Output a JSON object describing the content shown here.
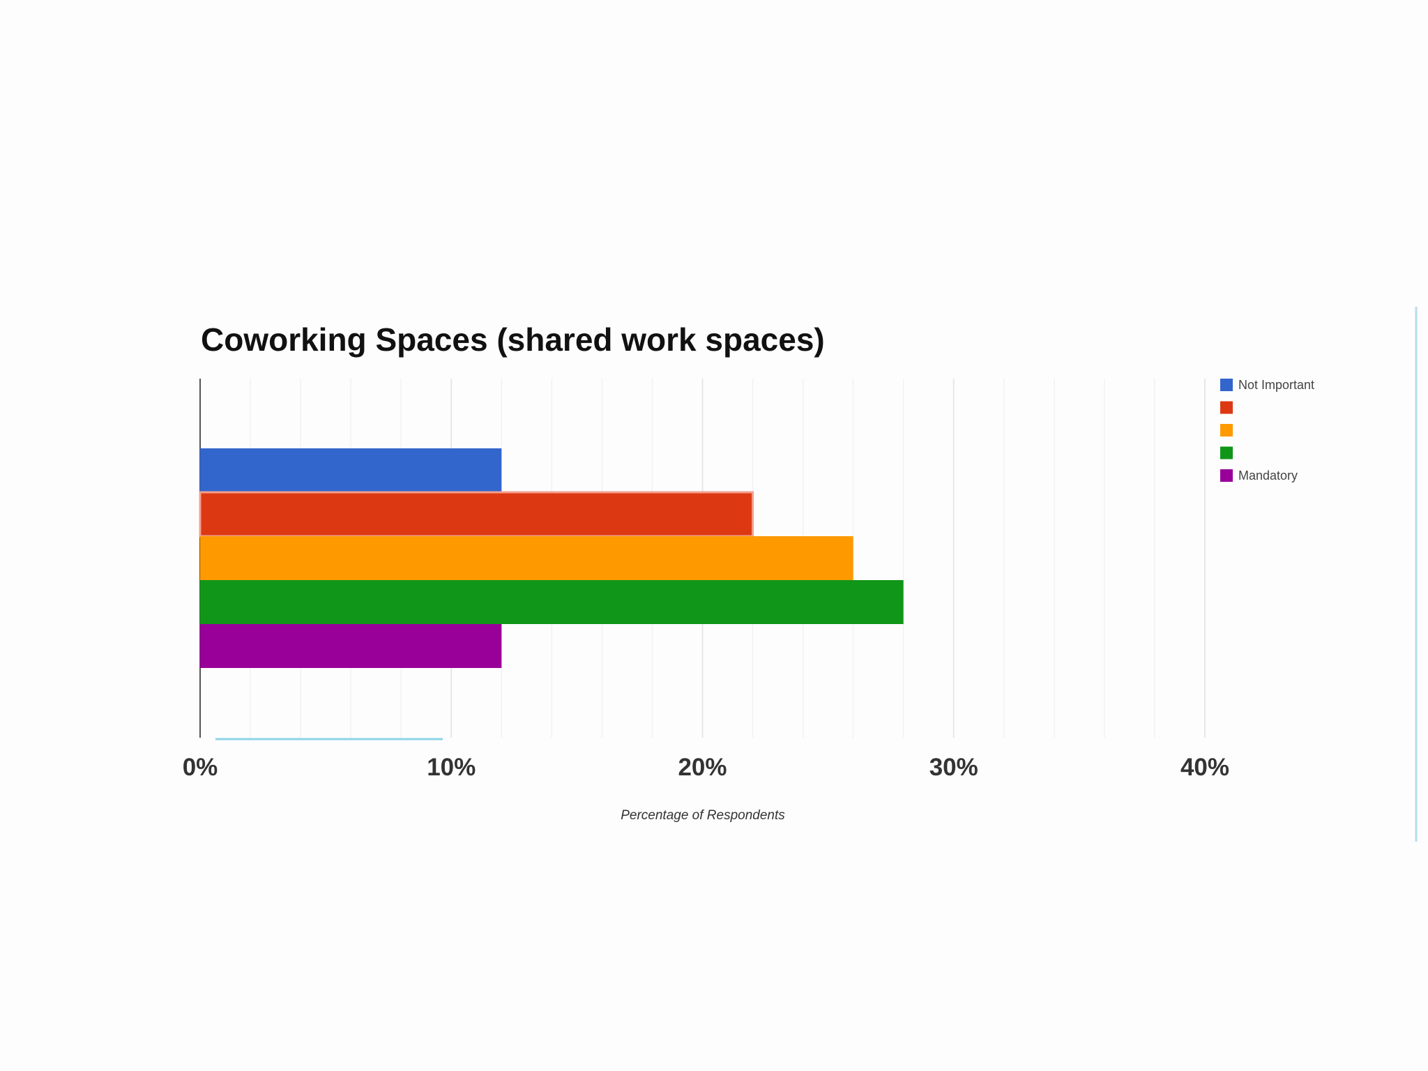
{
  "chart_data": {
    "type": "bar",
    "orientation": "horizontal",
    "title": "Coworking Spaces (shared work spaces)",
    "xlabel": "Percentage of Respondents",
    "ylabel": "",
    "xlim": [
      0,
      40
    ],
    "x_ticks": [
      "0%",
      "10%",
      "20%",
      "30%",
      "40%"
    ],
    "grid": true,
    "legend_position": "top-right",
    "series": [
      {
        "name": "Not Important",
        "value": 12,
        "color": "#3366cc"
      },
      {
        "name": "",
        "value": 22,
        "color": "#dc3912"
      },
      {
        "name": "",
        "value": 26,
        "color": "#ff9900"
      },
      {
        "name": "",
        "value": 28,
        "color": "#109618"
      },
      {
        "name": "Mandatory",
        "value": 12,
        "color": "#990099"
      }
    ]
  }
}
